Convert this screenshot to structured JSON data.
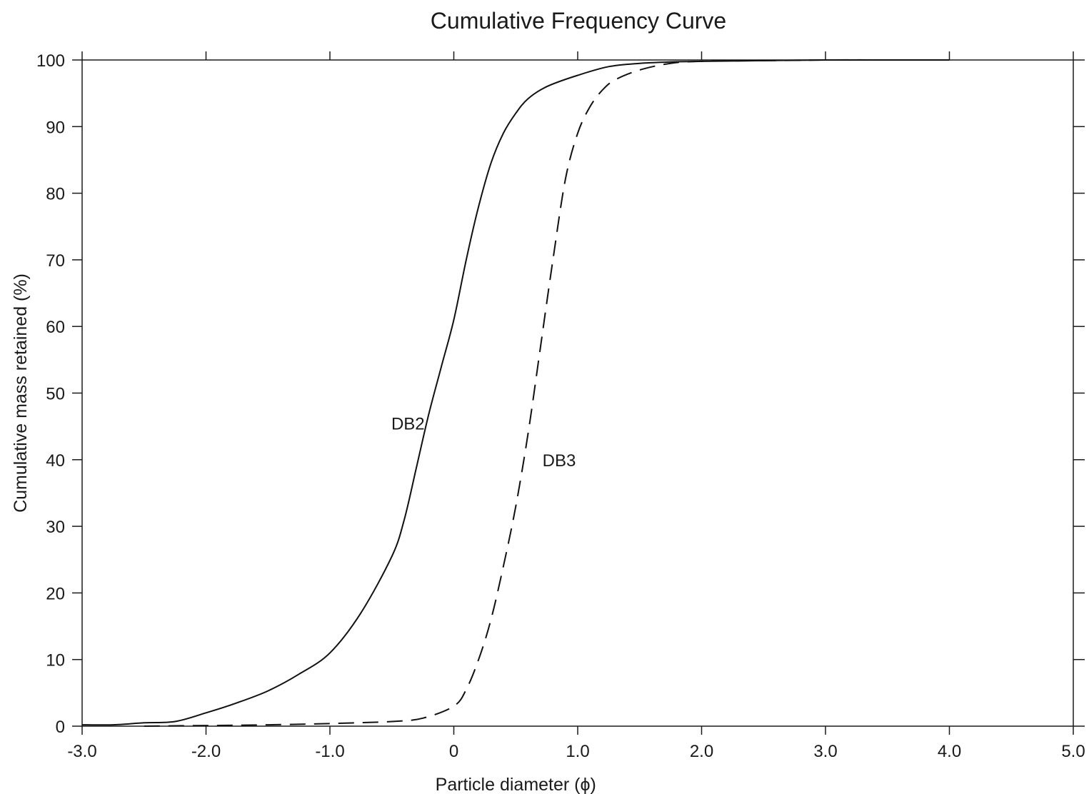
{
  "chart_data": {
    "type": "line",
    "title": "Cumulative Frequency Curve",
    "xlabel": "Particle diameter (ϕ)",
    "ylabel": "Cumulative mass retained (%)",
    "xlim": [
      -3.0,
      5.0
    ],
    "ylim": [
      0,
      100
    ],
    "x_ticks": [
      -3.0,
      -2.0,
      -1.0,
      0,
      1.0,
      2.0,
      3.0,
      4.0,
      5.0
    ],
    "x_tick_labels": [
      "-3.0",
      "-2.0",
      "-1.0",
      "0",
      "1.0",
      "2.0",
      "3.0",
      "4.0",
      "5.0"
    ],
    "y_ticks": [
      0,
      10,
      20,
      30,
      40,
      50,
      60,
      70,
      80,
      90,
      100
    ],
    "y_tick_labels": [
      "0",
      "10",
      "20",
      "30",
      "40",
      "50",
      "60",
      "70",
      "80",
      "90",
      "100"
    ],
    "grid": false,
    "series": [
      {
        "name": "DB2",
        "style": "solid",
        "color": "#111111",
        "label_at": [
          -0.37,
          45.5
        ],
        "x": [
          -3.0,
          -2.75,
          -2.5,
          -2.25,
          -2.0,
          -1.75,
          -1.5,
          -1.25,
          -1.0,
          -0.75,
          -0.5,
          -0.4,
          -0.3,
          -0.2,
          -0.1,
          0.0,
          0.1,
          0.2,
          0.3,
          0.4,
          0.5,
          0.6,
          0.75,
          1.0,
          1.25,
          1.5,
          1.75,
          2.0,
          2.5,
          3.0,
          3.5,
          4.0
        ],
        "y": [
          0.2,
          0.2,
          0.5,
          0.7,
          2.0,
          3.5,
          5.3,
          7.8,
          11.0,
          17.0,
          25.5,
          31.0,
          39.0,
          47.0,
          54.0,
          61.0,
          70.0,
          78.0,
          84.5,
          89.0,
          92.0,
          94.2,
          96.0,
          97.7,
          99.0,
          99.5,
          99.7,
          99.8,
          99.9,
          100.0,
          100.0,
          100.0
        ]
      },
      {
        "name": "DB3",
        "style": "dashed",
        "color": "#111111",
        "label_at": [
          0.85,
          40.0
        ],
        "x": [
          -2.5,
          -2.0,
          -1.5,
          -1.0,
          -0.5,
          -0.25,
          0.0,
          0.1,
          0.2,
          0.3,
          0.4,
          0.5,
          0.6,
          0.7,
          0.8,
          0.9,
          1.0,
          1.1,
          1.2,
          1.3,
          1.5,
          1.75,
          2.0,
          2.5,
          3.0,
          3.5,
          4.0
        ],
        "y": [
          0.0,
          0.1,
          0.2,
          0.4,
          0.7,
          1.2,
          3.0,
          5.5,
          10.0,
          16.0,
          24.0,
          33.0,
          44.0,
          57.0,
          70.0,
          82.0,
          89.0,
          93.0,
          95.5,
          97.0,
          98.5,
          99.5,
          99.8,
          99.9,
          100.0,
          100.0,
          100.0
        ]
      }
    ]
  }
}
